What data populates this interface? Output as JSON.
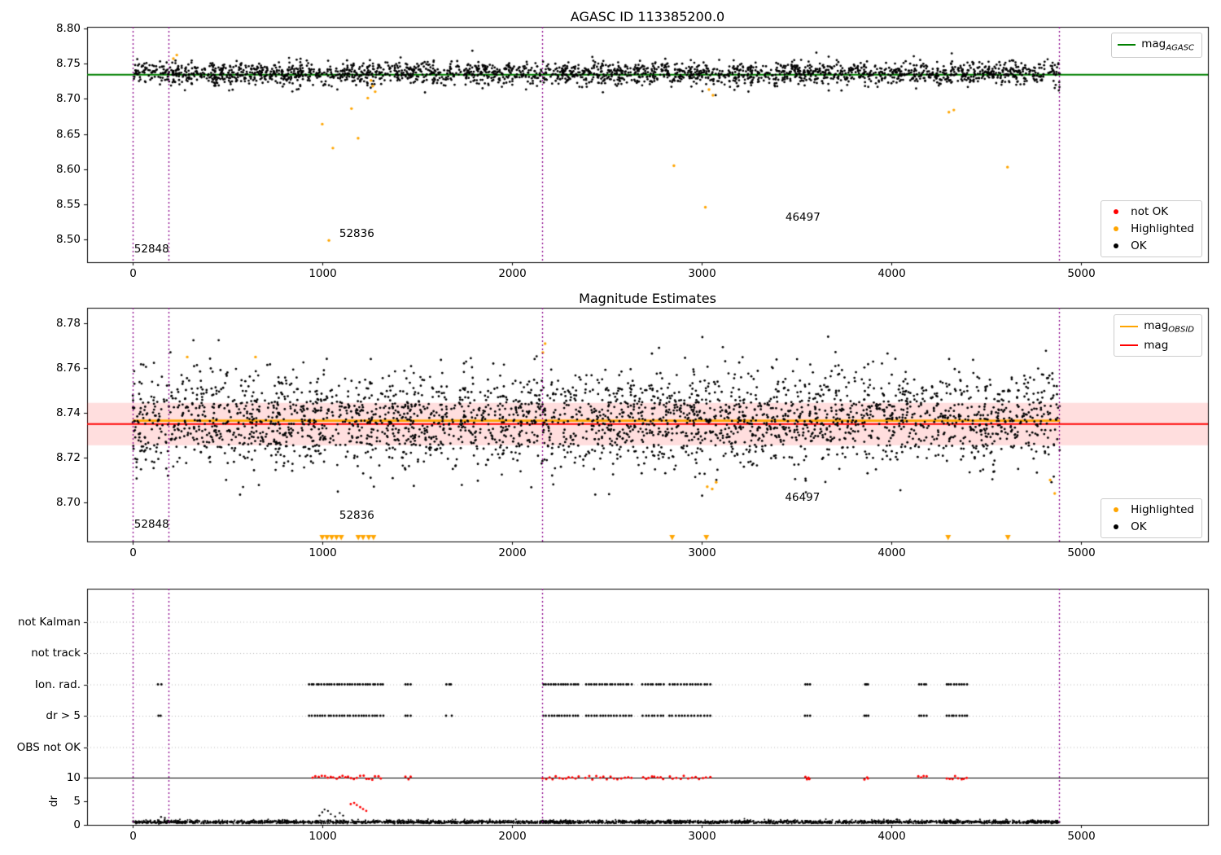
{
  "colors": {
    "ok": "#000000",
    "highlighted": "#ffa500",
    "not_ok": "#ff0000",
    "mag_agasc": "#008000",
    "mag": "#ff0000",
    "mag_obsid": "#ffa500",
    "vline": "#8b008b",
    "grid": "#b8b8b8",
    "band": "rgba(255,0,0,0.13)",
    "spine": "#000000"
  },
  "chart_data": [
    {
      "id": "agasc-mag-panel",
      "type": "scatter",
      "title": "AGASC ID 113385200.0",
      "xlim": [
        -240,
        5670
      ],
      "ylim": [
        8.468,
        8.802
      ],
      "xticks": [
        0,
        1000,
        2000,
        3000,
        4000,
        5000
      ],
      "ytick_values": [
        8.8,
        8.75,
        8.7,
        8.65,
        8.6,
        8.55,
        8.5
      ],
      "ytick_labels": [
        "8.80",
        "8.75",
        "8.70",
        "8.65",
        "8.60",
        "8.55",
        "8.50"
      ],
      "mag_agasc_line": {
        "y": 8.734,
        "color": "#008000"
      },
      "vlines": [
        0,
        190,
        2160,
        4885
      ],
      "ok_series": {
        "label": "OK",
        "color": "#000000",
        "n": 2400,
        "x_range": [
          0,
          4890
        ],
        "mean": 8.736,
        "std": 0.0082,
        "y_range": [
          8.697,
          8.779
        ],
        "seed": 11
      },
      "highlighted_points": [
        [
          215,
          8.757
        ],
        [
          233,
          8.762
        ],
        [
          1000,
          8.664
        ],
        [
          1056,
          8.63
        ],
        [
          1154,
          8.686
        ],
        [
          1189,
          8.644
        ],
        [
          1240,
          8.701
        ],
        [
          1257,
          8.726
        ],
        [
          1266,
          8.718
        ],
        [
          1279,
          8.71
        ],
        [
          1035,
          8.499
        ],
        [
          2854,
          8.605
        ],
        [
          3020,
          8.546
        ],
        [
          3039,
          8.713
        ],
        [
          3060,
          8.705
        ],
        [
          4304,
          8.681
        ],
        [
          4330,
          8.684
        ],
        [
          4613,
          8.603
        ]
      ],
      "not_ok_points": [],
      "annotations": [
        {
          "text": "52848",
          "x": 8,
          "y": 8.486
        },
        {
          "text": "52836",
          "x": 1090,
          "y": 8.508
        },
        {
          "text": "46497",
          "x": 3442,
          "y": 8.532
        }
      ],
      "legend_line": {
        "items": [
          {
            "swatch": "line",
            "color": "#008000",
            "label": "mag",
            "sub": "AGASC"
          }
        ]
      },
      "legend_points": {
        "items": [
          {
            "swatch": "dot",
            "color": "#ff0000",
            "label": "not OK"
          },
          {
            "swatch": "dot",
            "color": "#ffa500",
            "label": "Highlighted"
          },
          {
            "swatch": "dot",
            "color": "#000000",
            "label": "OK"
          }
        ]
      }
    },
    {
      "id": "magnitude-estimates-panel",
      "type": "scatter",
      "title": "Magnitude Estimates",
      "xlim": [
        -240,
        5670
      ],
      "ylim": [
        8.6825,
        8.787
      ],
      "xticks": [
        0,
        1000,
        2000,
        3000,
        4000,
        5000
      ],
      "ytick_values": [
        8.78,
        8.76,
        8.74,
        8.72,
        8.7
      ],
      "ytick_labels": [
        "8.78",
        "8.76",
        "8.74",
        "8.72",
        "8.70"
      ],
      "band": {
        "low": 8.7255,
        "high": 8.7445,
        "color": "rgba(255,0,0,0.13)"
      },
      "mag_line": {
        "y": 8.735,
        "color": "#ff0000"
      },
      "obsid_line": {
        "y": 8.7365,
        "color": "#ffa500",
        "x_range": [
          0,
          4890
        ]
      },
      "vlines": [
        0,
        190,
        2160,
        4885
      ],
      "ok_series": {
        "label": "OK",
        "color": "#000000",
        "n": 3000,
        "x_range": [
          0,
          4890
        ],
        "mean": 8.737,
        "std": 0.0105,
        "y_range": [
          8.699,
          8.779
        ],
        "seed": 7
      },
      "ok_outliers": [
        [
          1255,
          8.711
        ],
        [
          1272,
          8.707
        ],
        [
          2212,
          8.712
        ],
        [
          2218,
          8.708
        ],
        [
          3078,
          8.71
        ],
        [
          3550,
          8.7045
        ],
        [
          3875,
          8.713
        ],
        [
          4470,
          8.714
        ],
        [
          4845,
          8.709
        ]
      ],
      "highlighted_points": [
        [
          288,
          8.765
        ],
        [
          648,
          8.765
        ],
        [
          2163,
          8.767
        ],
        [
          2175,
          8.771
        ],
        [
          3030,
          8.707
        ],
        [
          3056,
          8.706
        ],
        [
          3077,
          8.709
        ],
        [
          4838,
          8.71
        ],
        [
          4862,
          8.704
        ]
      ],
      "clipped_low_x": [
        1000,
        1025,
        1050,
        1075,
        1100,
        1190,
        1215,
        1245,
        1270,
        2845,
        3025,
        4300,
        4615
      ],
      "annotations": [
        {
          "text": "52848",
          "x": 8,
          "y": 8.69
        },
        {
          "text": "52836",
          "x": 1090,
          "y": 8.694
        },
        {
          "text": "46497",
          "x": 3440,
          "y": 8.702
        }
      ],
      "legend_line": {
        "items": [
          {
            "swatch": "line",
            "color": "#ffa500",
            "label": "mag",
            "sub": "OBSID"
          },
          {
            "swatch": "line",
            "color": "#ff0000",
            "label": "mag"
          }
        ]
      },
      "legend_points": {
        "items": [
          {
            "swatch": "dot",
            "color": "#ffa500",
            "label": "Highlighted"
          },
          {
            "swatch": "dot",
            "color": "#000000",
            "label": "OK"
          }
        ]
      }
    },
    {
      "id": "flags-dr-panel",
      "type": "event-raster",
      "title": "",
      "xlim": [
        -240,
        5670
      ],
      "xticks": [
        0,
        1000,
        2000,
        3000,
        4000,
        5000
      ],
      "rows": [
        "not Kalman",
        "not track",
        "Ion. rad.",
        "dr > 5",
        "OBS not OK"
      ],
      "dr_ticks": [
        10,
        5,
        0
      ],
      "dr_label": "dr",
      "dr_limit_line": 10,
      "vlines": [
        0,
        190,
        2160,
        4885
      ],
      "row_clusters": {
        "Ion. rad.": [
          [
            135,
            150,
            2
          ],
          [
            930,
            1320,
            30
          ],
          [
            1440,
            1465,
            3
          ],
          [
            1655,
            1680,
            3
          ],
          [
            2165,
            2350,
            15
          ],
          [
            2390,
            2630,
            18
          ],
          [
            2690,
            2800,
            9
          ],
          [
            2830,
            3045,
            15
          ],
          [
            3545,
            3570,
            3
          ],
          [
            3860,
            3880,
            3
          ],
          [
            4145,
            4185,
            4
          ],
          [
            4290,
            4400,
            9
          ]
        ],
        "dr > 5": [
          [
            135,
            150,
            2
          ],
          [
            930,
            1320,
            28
          ],
          [
            1440,
            1465,
            3
          ],
          [
            1655,
            1680,
            2
          ],
          [
            2165,
            2350,
            14
          ],
          [
            2390,
            2630,
            17
          ],
          [
            2690,
            2800,
            8
          ],
          [
            2830,
            3045,
            14
          ],
          [
            3545,
            3570,
            3
          ],
          [
            3860,
            3880,
            3
          ],
          [
            4145,
            4185,
            4
          ],
          [
            4290,
            4400,
            9
          ]
        ]
      },
      "dr_clipped_clusters": [
        [
          950,
          1310,
          24
        ],
        [
          1440,
          1465,
          3
        ],
        [
          2165,
          2350,
          12
        ],
        [
          2390,
          2630,
          14
        ],
        [
          2690,
          2800,
          8
        ],
        [
          2830,
          3045,
          12
        ],
        [
          3545,
          3570,
          4
        ],
        [
          3860,
          3880,
          3
        ],
        [
          4145,
          4185,
          4
        ],
        [
          4290,
          4400,
          8
        ]
      ],
      "dr_trace": {
        "color": "#000000",
        "n": 3200,
        "x_range": [
          0,
          4890
        ],
        "base": 0.15,
        "seed": 23
      },
      "dr_spikes_black": [
        [
          150,
          1.6
        ],
        [
          170,
          1.4
        ],
        [
          985,
          1.9
        ],
        [
          1000,
          2.6
        ],
        [
          1012,
          3.2
        ],
        [
          1030,
          2.9
        ],
        [
          1045,
          2.2
        ],
        [
          1068,
          1.7
        ],
        [
          1092,
          2.45
        ],
        [
          1110,
          1.9
        ]
      ],
      "dr_spikes_red": [
        [
          1150,
          4.35
        ],
        [
          1168,
          4.6
        ],
        [
          1182,
          4.15
        ],
        [
          1200,
          3.7
        ],
        [
          1215,
          3.3
        ],
        [
          1232,
          2.9
        ]
      ]
    }
  ]
}
